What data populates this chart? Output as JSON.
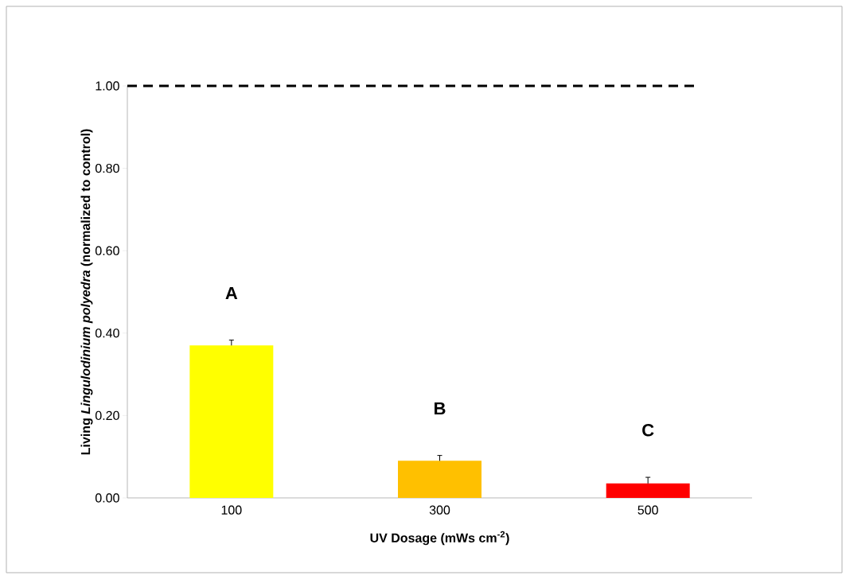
{
  "chart_data": {
    "type": "bar",
    "ylabel": "Living *Lingulodinium polyedra* (normalized to control)",
    "xlabel": "UV Dosage  (mWs cm$^{-2}$)",
    "categories": [
      "100",
      "300",
      "500"
    ],
    "values": [
      0.37,
      0.09,
      0.035
    ],
    "errors": [
      0.013,
      0.013,
      0.015
    ],
    "colors": [
      "#ffff00",
      "#ffc000",
      "#ff0000"
    ],
    "ylim": [
      0,
      1.0
    ],
    "yticks": [
      {
        "value": 0,
        "label": "0.00"
      },
      {
        "value": 0.2,
        "label": "0.20"
      },
      {
        "value": 0.4,
        "label": "0.40"
      },
      {
        "value": 0.6,
        "label": "0.60"
      },
      {
        "value": 0.8,
        "label": "0.80"
      },
      {
        "value": 1.0,
        "label": "1.00"
      }
    ],
    "ref_lines": [
      {
        "axis": "y",
        "value": 1.0,
        "color": "#000000",
        "line_style": "dashed"
      }
    ],
    "annotations": [
      "A",
      "B",
      "C"
    ]
  }
}
